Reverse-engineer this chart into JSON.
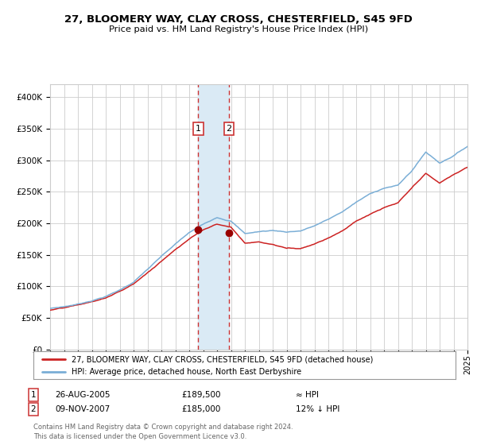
{
  "title": "27, BLOOMERY WAY, CLAY CROSS, CHESTERFIELD, S45 9FD",
  "subtitle": "Price paid vs. HM Land Registry's House Price Index (HPI)",
  "legend_line1": "27, BLOOMERY WAY, CLAY CROSS, CHESTERFIELD, S45 9FD (detached house)",
  "legend_line2": "HPI: Average price, detached house, North East Derbyshire",
  "transaction1_date": "26-AUG-2005",
  "transaction1_price": 189500,
  "transaction1_hpi": "≈ HPI",
  "transaction2_date": "09-NOV-2007",
  "transaction2_price": 185000,
  "transaction2_hpi": "12% ↓ HPI",
  "footnote": "Contains HM Land Registry data © Crown copyright and database right 2024.\nThis data is licensed under the Open Government Licence v3.0.",
  "hpi_color": "#7aaed6",
  "price_color": "#cc2222",
  "marker_color": "#990000",
  "vline_color": "#cc3333",
  "shade_color": "#daeaf5",
  "grid_color": "#cccccc",
  "bg_color": "#ffffff",
  "ylim": [
    0,
    420000
  ],
  "yticks": [
    0,
    50000,
    100000,
    150000,
    200000,
    250000,
    300000,
    350000,
    400000
  ],
  "year_start": 1995,
  "year_end": 2025,
  "transaction1_year": 2005.65,
  "transaction2_year": 2007.85,
  "hpi_key_years": [
    1995,
    1996,
    1997,
    1998,
    1999,
    2000,
    2001,
    2002,
    2003,
    2004,
    2005,
    2006,
    2007,
    2008,
    2009,
    2010,
    2011,
    2012,
    2013,
    2014,
    2015,
    2016,
    2017,
    2018,
    2019,
    2020,
    2021,
    2022,
    2023,
    2024,
    2025
  ],
  "hpi_key_vals": [
    65000,
    68000,
    72000,
    78000,
    85000,
    95000,
    108000,
    128000,
    148000,
    167000,
    185000,
    198000,
    210000,
    205000,
    185000,
    188000,
    190000,
    188000,
    190000,
    198000,
    208000,
    220000,
    235000,
    248000,
    258000,
    262000,
    285000,
    315000,
    298000,
    310000,
    325000
  ],
  "price_key_years": [
    1995,
    1996,
    1997,
    1998,
    1999,
    2000,
    2001,
    2002,
    2003,
    2004,
    2005,
    2006,
    2007,
    2008,
    2009,
    2010,
    2011,
    2012,
    2013,
    2014,
    2015,
    2016,
    2017,
    2018,
    2019,
    2020,
    2021,
    2022,
    2023,
    2024,
    2025
  ],
  "price_key_vals": [
    62000,
    65000,
    69000,
    74000,
    80000,
    90000,
    102000,
    120000,
    138000,
    158000,
    175000,
    190000,
    200000,
    195000,
    170000,
    172000,
    168000,
    162000,
    162000,
    170000,
    180000,
    192000,
    207000,
    218000,
    228000,
    235000,
    258000,
    280000,
    265000,
    278000,
    290000
  ]
}
